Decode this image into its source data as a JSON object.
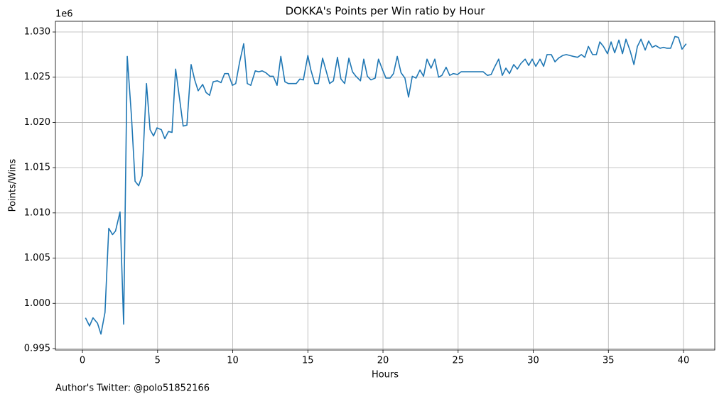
{
  "chart_data": {
    "type": "line",
    "title": "DOKKA's Points per Win ratio by Hour",
    "x_label": "Hours",
    "y_label": "Points/Wins",
    "y_offset_label": "1e6",
    "footnote": "Author's Twitter: @polo51852166",
    "grid": true,
    "xlim": [
      -1.8,
      42.08
    ],
    "xticks": [
      0,
      5,
      10,
      15,
      20,
      25,
      30,
      35,
      40
    ],
    "ylim": [
      0.99484,
      1.03118
    ],
    "yticks": [
      {
        "value": 0.995,
        "label": "0.995"
      },
      {
        "value": 1,
        "label": "1.000"
      },
      {
        "value": 1.005,
        "label": "1.005"
      },
      {
        "value": 1.01,
        "label": "1.010"
      },
      {
        "value": 1.015,
        "label": "1.015"
      },
      {
        "value": 1.02,
        "label": "1.020"
      },
      {
        "value": 1.025,
        "label": "1.025"
      },
      {
        "value": 1.03,
        "label": "1.030"
      }
    ],
    "x": [
      0.2,
      0.47,
      0.7,
      1.0,
      1.23,
      1.5,
      1.75,
      2.0,
      2.2,
      2.5,
      2.74,
      2.98,
      3.26,
      3.5,
      3.74,
      3.97,
      4.26,
      4.5,
      4.73,
      4.96,
      5.25,
      5.48,
      5.72,
      5.96,
      6.2,
      6.48,
      6.7,
      6.95,
      7.23,
      7.47,
      7.7,
      8.0,
      8.23,
      8.46,
      8.7,
      8.98,
      9.22,
      9.46,
      9.7,
      9.98,
      10.2,
      10.45,
      10.73,
      10.97,
      11.2,
      11.5,
      11.73,
      11.96,
      12.2,
      12.48,
      12.7,
      12.95,
      13.2,
      13.47,
      13.7,
      13.95,
      14.23,
      14.47,
      14.7,
      15.0,
      15.2,
      15.46,
      15.7,
      15.98,
      16.2,
      16.45,
      16.7,
      16.97,
      17.2,
      17.45,
      17.73,
      17.97,
      18.2,
      18.5,
      18.72,
      18.96,
      19.2,
      19.48,
      19.7,
      19.95,
      20.2,
      20.47,
      20.7,
      20.95,
      21.2,
      21.46,
      21.7,
      21.95,
      22.2,
      22.46,
      22.7,
      22.93,
      23.2,
      23.45,
      23.7,
      23.92,
      24.2,
      24.44,
      24.68,
      24.96,
      25.2,
      25.43,
      25.67,
      25.96,
      26.2,
      26.43,
      26.67,
      26.95,
      27.2,
      27.42,
      27.7,
      27.94,
      28.18,
      28.42,
      28.7,
      28.94,
      29.17,
      29.46,
      29.7,
      29.93,
      30.17,
      30.45,
      30.69,
      30.92,
      31.2,
      31.45,
      31.68,
      31.96,
      32.2,
      32.43,
      32.67,
      32.95,
      33.2,
      33.43,
      33.67,
      33.95,
      34.2,
      34.43,
      34.67,
      34.94,
      35.18,
      35.42,
      35.7,
      35.94,
      36.17,
      36.45,
      36.7,
      36.93,
      37.17,
      37.45,
      37.68,
      37.92,
      38.15,
      38.44,
      38.67,
      38.9,
      39.14,
      39.43,
      39.66,
      39.9,
      40.18
    ],
    "series": [
      {
        "color": "#1f77b4",
        "values": [
          0.9984,
          0.9975,
          0.9984,
          0.9978,
          0.9966,
          0.999,
          1.0083,
          1.0076,
          1.008,
          1.0101,
          0.9977,
          1.0273,
          1.0207,
          1.0135,
          1.013,
          1.0141,
          1.0243,
          1.0192,
          1.0185,
          1.0194,
          1.0192,
          1.0182,
          1.019,
          1.0189,
          1.0259,
          1.0224,
          1.0196,
          1.0197,
          1.0264,
          1.0247,
          1.0235,
          1.0242,
          1.0233,
          1.023,
          1.0245,
          1.0246,
          1.0244,
          1.0254,
          1.0254,
          1.0241,
          1.0243,
          1.0266,
          1.0287,
          1.0243,
          1.0241,
          1.0257,
          1.0256,
          1.0257,
          1.0255,
          1.0251,
          1.0251,
          1.0241,
          1.0273,
          1.0245,
          1.0243,
          1.0243,
          1.0243,
          1.0248,
          1.0247,
          1.0274,
          1.0258,
          1.0243,
          1.0243,
          1.0271,
          1.0258,
          1.0243,
          1.0246,
          1.0272,
          1.0248,
          1.0243,
          1.0271,
          1.0256,
          1.0251,
          1.0246,
          1.027,
          1.0251,
          1.0247,
          1.0249,
          1.027,
          1.0259,
          1.0249,
          1.0249,
          1.0254,
          1.0273,
          1.0255,
          1.0249,
          1.0228,
          1.0251,
          1.0249,
          1.0258,
          1.0251,
          1.027,
          1.026,
          1.027,
          1.025,
          1.0252,
          1.0261,
          1.0252,
          1.0254,
          1.0253,
          1.0256,
          1.0256,
          1.0256,
          1.0256,
          1.0256,
          1.0256,
          1.0256,
          1.0252,
          1.0253,
          1.0261,
          1.027,
          1.0252,
          1.026,
          1.0254,
          1.0264,
          1.0259,
          1.0265,
          1.027,
          1.0263,
          1.027,
          1.0262,
          1.027,
          1.0262,
          1.0275,
          1.0275,
          1.0267,
          1.0271,
          1.0274,
          1.0275,
          1.0274,
          1.0273,
          1.0272,
          1.0275,
          1.0272,
          1.0284,
          1.0275,
          1.0275,
          1.0289,
          1.0284,
          1.0276,
          1.0289,
          1.0277,
          1.0291,
          1.0276,
          1.0292,
          1.0279,
          1.0264,
          1.0284,
          1.0292,
          1.028,
          1.029,
          1.0283,
          1.0285,
          1.0282,
          1.0283,
          1.0282,
          1.0282,
          1.0295,
          1.0294,
          1.0281,
          1.0287
        ]
      }
    ]
  }
}
